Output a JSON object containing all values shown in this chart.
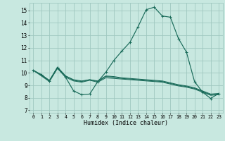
{
  "title": "",
  "xlabel": "Humidex (Indice chaleur)",
  "background_color": "#c8e8e0",
  "grid_color": "#a0c8c0",
  "line_color": "#1a6b5a",
  "x_values": [
    0,
    1,
    2,
    3,
    4,
    5,
    6,
    7,
    8,
    9,
    10,
    11,
    12,
    13,
    14,
    15,
    16,
    17,
    18,
    19,
    20,
    21,
    22,
    23
  ],
  "ylim": [
    6.8,
    15.6
  ],
  "xlim": [
    -0.5,
    23.5
  ],
  "yticks": [
    7,
    8,
    9,
    10,
    11,
    12,
    13,
    14,
    15
  ],
  "xtick_labels": [
    "0",
    "1",
    "2",
    "3",
    "4",
    "5",
    "6",
    "7",
    "8",
    "9",
    "10",
    "11",
    "12",
    "13",
    "14",
    "15",
    "16",
    "17",
    "18",
    "19",
    "20",
    "21",
    "22",
    "23"
  ],
  "line1": [
    10.2,
    9.85,
    9.35,
    10.4,
    9.65,
    8.55,
    8.25,
    8.3,
    9.3,
    10.05,
    11.0,
    11.75,
    12.45,
    13.7,
    15.05,
    15.25,
    14.55,
    14.45,
    12.75,
    11.65,
    9.3,
    8.45,
    7.95,
    8.35
  ],
  "line2": [
    10.2,
    9.85,
    9.4,
    10.45,
    9.75,
    9.45,
    9.35,
    9.45,
    9.35,
    9.75,
    9.7,
    9.6,
    9.55,
    9.5,
    9.45,
    9.4,
    9.35,
    9.2,
    9.05,
    8.95,
    8.8,
    8.55,
    8.3,
    8.35
  ],
  "line3": [
    10.2,
    9.8,
    9.35,
    10.45,
    9.75,
    9.4,
    9.3,
    9.45,
    9.3,
    9.7,
    9.65,
    9.55,
    9.5,
    9.45,
    9.4,
    9.35,
    9.3,
    9.15,
    9.0,
    8.9,
    8.75,
    8.5,
    8.25,
    8.3
  ],
  "line4": [
    10.2,
    9.75,
    9.3,
    10.35,
    9.65,
    9.35,
    9.25,
    9.4,
    9.25,
    9.6,
    9.55,
    9.5,
    9.45,
    9.4,
    9.35,
    9.3,
    9.25,
    9.1,
    8.95,
    8.85,
    8.7,
    8.45,
    8.2,
    8.25
  ]
}
